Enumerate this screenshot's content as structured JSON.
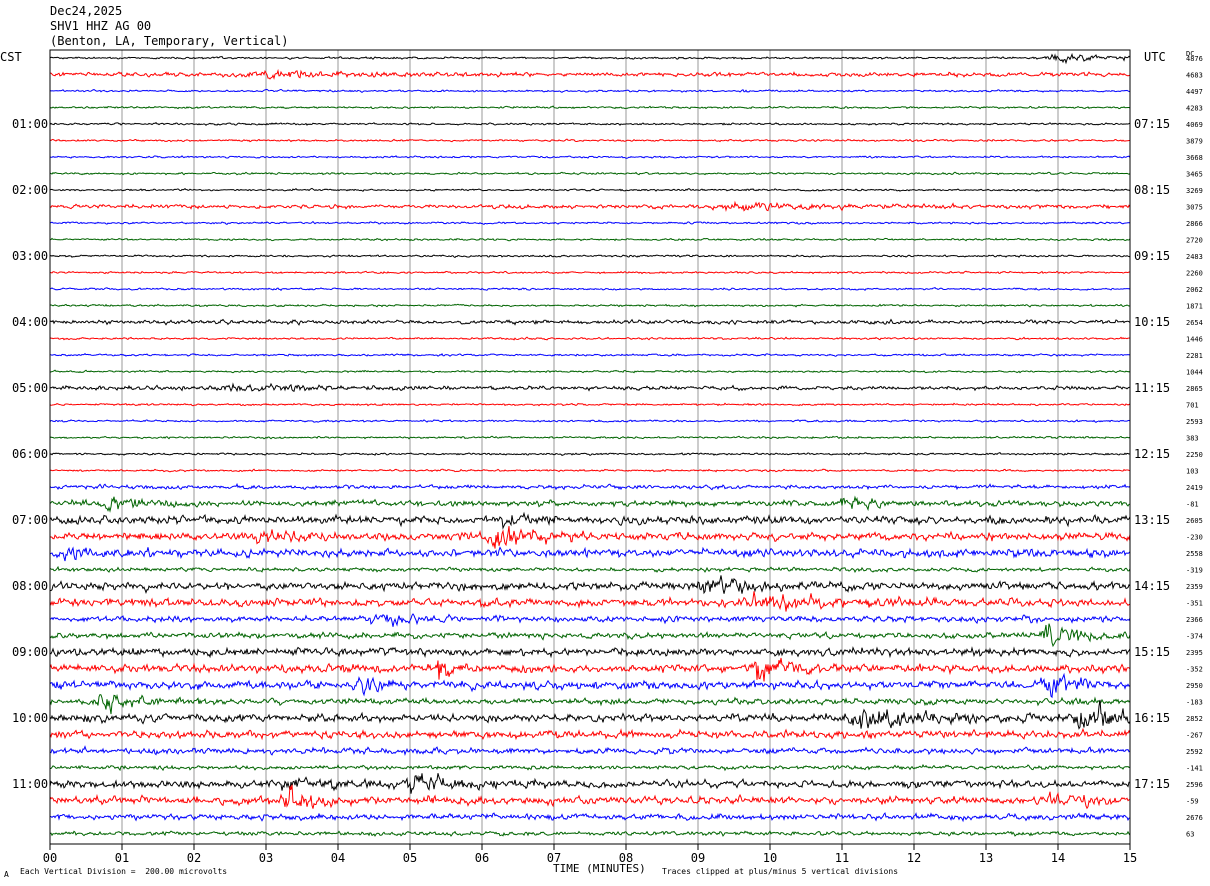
{
  "header": {
    "date": "Dec24,2025",
    "station": "SHV1 HHZ AG 00",
    "location": "(Benton, LA, Temporary, Vertical)"
  },
  "left_zone_label": "CST",
  "right_zone_label": "UTC",
  "dc_label": "DC",
  "footer": {
    "scale_note": "Each Vertical Division =  200.00 microvolts",
    "clip_note": "Traces clipped at plus/minus 5 vertical divisions",
    "mark": "A"
  },
  "colors": {
    "cycle": [
      "#000000",
      "#ff0000",
      "#0000ff",
      "#006400"
    ],
    "grid": "#808080"
  },
  "chart_data": {
    "type": "line",
    "title": "SHV1 HHZ AG 00",
    "xlabel": "TIME (MINUTES)",
    "ylabel": "",
    "x_ticks": [
      "00",
      "01",
      "02",
      "03",
      "04",
      "05",
      "06",
      "07",
      "08",
      "09",
      "10",
      "11",
      "12",
      "13",
      "14",
      "15"
    ],
    "xlim": [
      0,
      15
    ],
    "rows_per_hour": 4,
    "left_hour_labels": [
      "01:00",
      "02:00",
      "03:00",
      "04:00",
      "05:00",
      "06:00",
      "07:00",
      "08:00",
      "09:00",
      "10:00",
      "11:00"
    ],
    "right_hour_labels": [
      "07:15",
      "08:15",
      "09:15",
      "10:15",
      "11:15",
      "12:15",
      "13:15",
      "14:15",
      "15:15",
      "16:15",
      "17:15"
    ],
    "dc_offsets": [
      "4876",
      "4683",
      "4497",
      "4283",
      "4069",
      "3879",
      "3668",
      "3465",
      "3269",
      "3075",
      "2866",
      "2720",
      "2483",
      "2260",
      "2062",
      "1871",
      "2654",
      "1446",
      "2281",
      "1044",
      "2865",
      "701",
      "2593",
      "383",
      "2250",
      "103",
      "2419",
      "-81",
      "2605",
      "-230",
      "2558",
      "-319",
      "2359",
      "-351",
      "2366",
      "-374",
      "2395",
      "-352",
      "2950",
      "-183",
      "2852",
      "-267",
      "2592",
      "-141",
      "2596",
      "-59",
      "2676",
      "63"
    ],
    "series_activity": [
      1,
      2,
      1,
      1,
      1,
      1,
      1,
      1,
      1,
      2,
      1,
      1,
      1,
      1,
      1,
      1,
      2,
      1,
      1,
      1,
      2,
      1,
      1,
      1,
      1,
      1,
      2,
      3,
      4,
      4,
      4,
      2,
      4,
      4,
      3,
      3,
      4,
      4,
      4,
      3,
      4,
      4,
      3,
      2,
      4,
      4,
      3,
      2
    ],
    "events": [
      {
        "row": 0,
        "minute": 14.0,
        "amp": 4,
        "dur": 1.0
      },
      {
        "row": 1,
        "minute": 3.0,
        "amp": 3,
        "dur": 1.5
      },
      {
        "row": 9,
        "minute": 9.5,
        "amp": 3,
        "dur": 1.5
      },
      {
        "row": 20,
        "minute": 2.5,
        "amp": 3,
        "dur": 1.5
      },
      {
        "row": 27,
        "minute": 0.8,
        "amp": 6,
        "dur": 0.5
      },
      {
        "row": 27,
        "minute": 11.0,
        "amp": 7,
        "dur": 0.4
      },
      {
        "row": 28,
        "minute": 6.3,
        "amp": 6,
        "dur": 0.4
      },
      {
        "row": 29,
        "minute": 2.9,
        "amp": 10,
        "dur": 0.3
      },
      {
        "row": 29,
        "minute": 6.2,
        "amp": 12,
        "dur": 0.6
      },
      {
        "row": 30,
        "minute": 0.2,
        "amp": 8,
        "dur": 0.4
      },
      {
        "row": 32,
        "minute": 9.1,
        "amp": 10,
        "dur": 0.5
      },
      {
        "row": 33,
        "minute": 9.8,
        "amp": 6,
        "dur": 1.5
      },
      {
        "row": 34,
        "minute": 4.5,
        "amp": 6,
        "dur": 0.6
      },
      {
        "row": 35,
        "minute": 13.8,
        "amp": 10,
        "dur": 0.6
      },
      {
        "row": 37,
        "minute": 5.4,
        "amp": 9,
        "dur": 0.3
      },
      {
        "row": 37,
        "minute": 9.8,
        "amp": 8,
        "dur": 0.6
      },
      {
        "row": 38,
        "minute": 4.3,
        "amp": 7,
        "dur": 0.4
      },
      {
        "row": 38,
        "minute": 13.8,
        "amp": 14,
        "dur": 0.5
      },
      {
        "row": 39,
        "minute": 0.7,
        "amp": 9,
        "dur": 0.5
      },
      {
        "row": 40,
        "minute": 11.2,
        "amp": 9,
        "dur": 1.0
      },
      {
        "row": 40,
        "minute": 14.3,
        "amp": 11,
        "dur": 0.8
      },
      {
        "row": 44,
        "minute": 3.2,
        "amp": 7,
        "dur": 0.6
      },
      {
        "row": 44,
        "minute": 5.0,
        "amp": 9,
        "dur": 0.6
      },
      {
        "row": 45,
        "minute": 3.3,
        "amp": 14,
        "dur": 0.4
      },
      {
        "row": 45,
        "minute": 13.9,
        "amp": 6,
        "dur": 0.6
      }
    ]
  }
}
